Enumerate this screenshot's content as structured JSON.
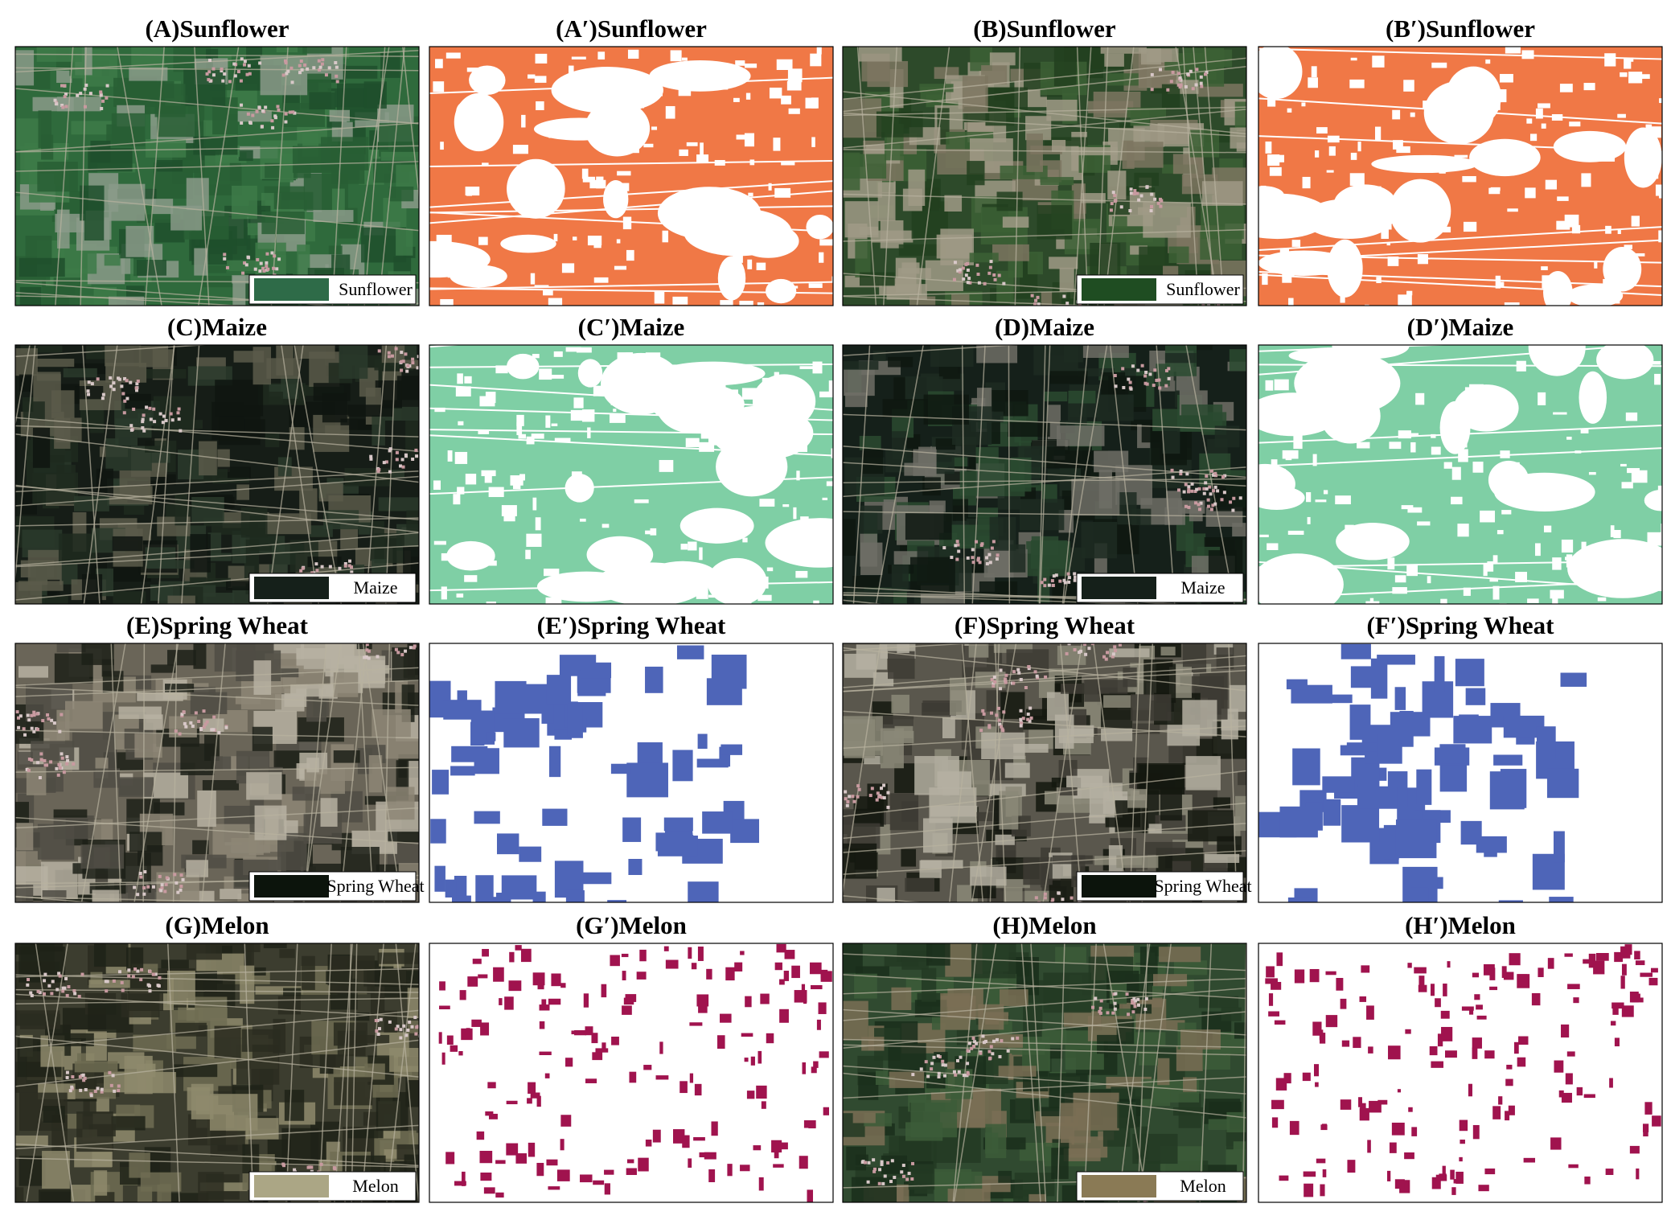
{
  "panels": [
    {
      "title": "(A)Sunflower",
      "legend": "Sunflower"
    },
    {
      "title": "(A′)Sunflower"
    },
    {
      "title": "(B)Sunflower",
      "legend": "Sunflower"
    },
    {
      "title": "(B′)Sunflower"
    },
    {
      "title": "(C)Maize",
      "legend": "Maize"
    },
    {
      "title": "(C′)Maize"
    },
    {
      "title": "(D)Maize",
      "legend": "Maize"
    },
    {
      "title": "(D′)Maize"
    },
    {
      "title": "(E)Spring Wheat",
      "legend": "Spring Wheat"
    },
    {
      "title": "(E′)Spring Wheat"
    },
    {
      "title": "(F)Spring Wheat",
      "legend": "Spring Wheat"
    },
    {
      "title": "(F′)Spring Wheat"
    },
    {
      "title": "(G)Melon",
      "legend": "Melon"
    },
    {
      "title": "(G′)Melon"
    },
    {
      "title": "(H)Melon",
      "legend": "Melon"
    },
    {
      "title": "(H′)Melon"
    }
  ]
}
